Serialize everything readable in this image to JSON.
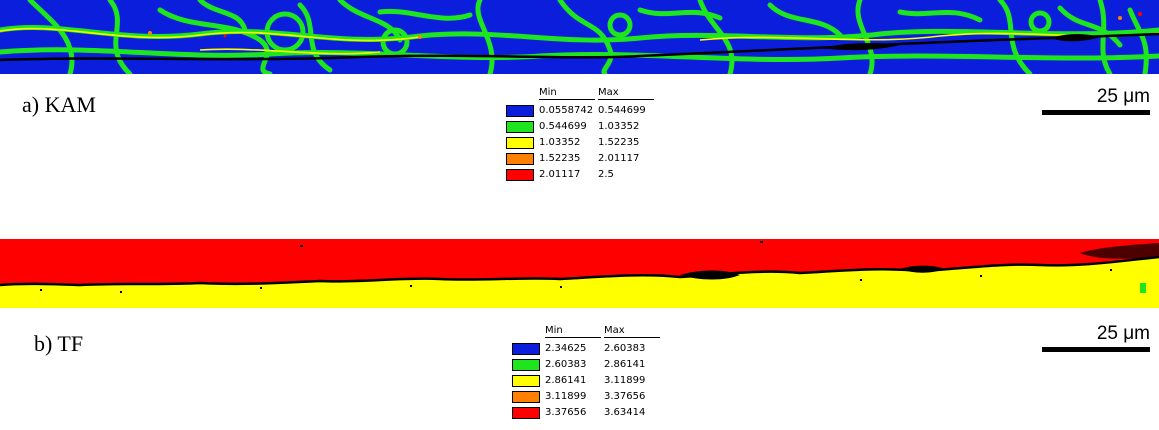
{
  "panels": {
    "a": {
      "label": "a) KAM",
      "scale_label": "25 μm",
      "legend": {
        "min_header": "Min",
        "max_header": "Max",
        "rows": [
          {
            "min": "0.0558742",
            "max": "0.544699",
            "color": "#0a1edc"
          },
          {
            "min": "0.544699",
            "max": "1.03352",
            "color": "#1ee61e"
          },
          {
            "min": "1.03352",
            "max": "1.52235",
            "color": "#ffff00"
          },
          {
            "min": "1.52235",
            "max": "2.01117",
            "color": "#ff8000"
          },
          {
            "min": "2.01117",
            "max": "2.5",
            "color": "#ff0000"
          }
        ]
      }
    },
    "b": {
      "label": "b) TF",
      "scale_label": "25 μm",
      "legend": {
        "min_header": "Min",
        "max_header": "Max",
        "rows": [
          {
            "min": "2.34625",
            "max": "2.60383",
            "color": "#0a1edc"
          },
          {
            "min": "2.60383",
            "max": "2.86141",
            "color": "#1ee61e"
          },
          {
            "min": "2.86141",
            "max": "3.11899",
            "color": "#ffff00"
          },
          {
            "min": "3.11899",
            "max": "3.37656",
            "color": "#ff8000"
          },
          {
            "min": "3.37656",
            "max": "3.63414",
            "color": "#ff0000"
          }
        ]
      }
    }
  },
  "colors": {
    "blue": "#0a1edc",
    "green": "#1ee61e",
    "yellow": "#ffff00",
    "orange": "#ff8000",
    "red": "#ff0000",
    "crack": "#000000"
  }
}
